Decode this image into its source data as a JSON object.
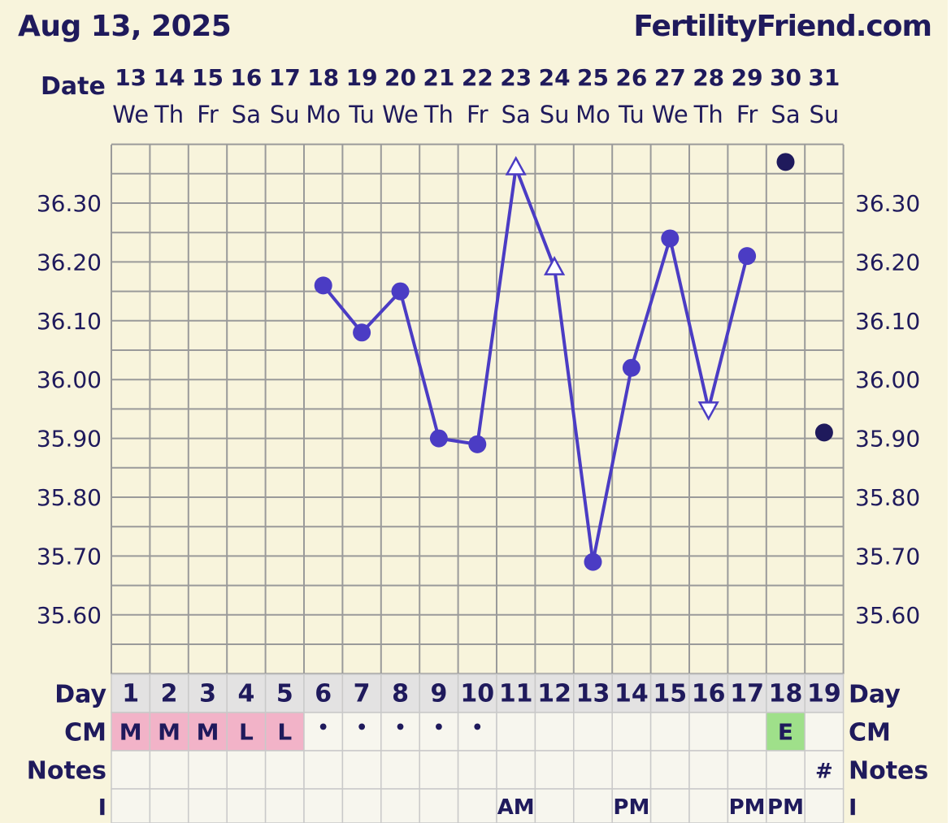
{
  "header": {
    "date": "Aug 13, 2025",
    "site": "FertilityFriend.com"
  },
  "row_labels": {
    "date": "Date",
    "day": "Day",
    "cm": "CM",
    "notes": "Notes",
    "i": "I"
  },
  "colors": {
    "line": "#4b3cc4",
    "dot_dark": "#1f1a5c",
    "grid": "#9a9a9a",
    "bg": "#f8f4dc",
    "cm_menstrual": "#f2b3c8",
    "cm_egg_white": "#9fe08a",
    "cell_bg": "#f7f6ee",
    "day_bg": "#e3e2e2"
  },
  "chart_data": {
    "type": "line",
    "dates": [
      "13",
      "14",
      "15",
      "16",
      "17",
      "18",
      "19",
      "20",
      "21",
      "22",
      "23",
      "24",
      "25",
      "26",
      "27",
      "28",
      "29",
      "30",
      "31"
    ],
    "weekdays": [
      "We",
      "Th",
      "Fr",
      "Sa",
      "Su",
      "Mo",
      "Tu",
      "We",
      "Th",
      "Fr",
      "Sa",
      "Su",
      "Mo",
      "Tu",
      "We",
      "Th",
      "Fr",
      "Sa",
      "Su"
    ],
    "cycle_days": [
      "1",
      "2",
      "3",
      "4",
      "5",
      "6",
      "7",
      "8",
      "9",
      "10",
      "11",
      "12",
      "13",
      "14",
      "15",
      "16",
      "17",
      "18",
      "19"
    ],
    "y_ticks": [
      "36.30",
      "36.20",
      "36.10",
      "36.00",
      "35.90",
      "35.80",
      "35.70",
      "35.60"
    ],
    "ylim": [
      35.52,
      36.41
    ],
    "series": [
      {
        "values": [
          null,
          null,
          null,
          null,
          null,
          36.16,
          36.08,
          36.15,
          35.9,
          35.89,
          36.36,
          36.19,
          35.69,
          36.02,
          36.24,
          35.95,
          36.21,
          null,
          null
        ],
        "markers": [
          null,
          null,
          null,
          null,
          null,
          "dot",
          "dot",
          "dot",
          "dot",
          "dot",
          "triangle-up",
          "triangle-up",
          "dot",
          "dot",
          "dot",
          "triangle-down",
          "dot",
          null,
          null
        ]
      }
    ],
    "unconnected_points": [
      {
        "day_index": 17,
        "value": 36.37
      },
      {
        "day_index": 18,
        "value": 35.91
      }
    ],
    "cm": [
      "M",
      "M",
      "M",
      "L",
      "L",
      "•",
      "•",
      "•",
      "•",
      "•",
      "",
      "",
      "",
      "",
      "",
      "",
      "",
      "E",
      ""
    ],
    "notes": [
      "",
      "",
      "",
      "",
      "",
      "",
      "",
      "",
      "",
      "",
      "",
      "",
      "",
      "",
      "",
      "",
      "",
      "",
      "#"
    ],
    "i_row": [
      "",
      "",
      "",
      "",
      "",
      "",
      "",
      "",
      "",
      "",
      "AM",
      "",
      "",
      "PM",
      "",
      "",
      "PM",
      "PM",
      ""
    ]
  }
}
